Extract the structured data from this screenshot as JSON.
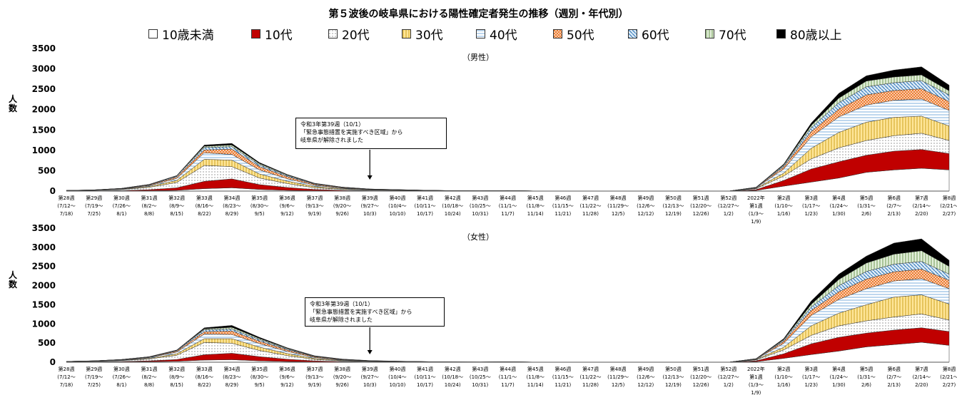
{
  "title": "第５波後の岐阜県における陽性確定者発生の推移（週別・年代別）",
  "ylabel": "人数",
  "annotation_lines": [
    "令和3年第39週（10/1）",
    "「緊急事態措置を実施すべき区域」から",
    "岐阜県が解除されました"
  ],
  "annotation_lines_female": [
    "令和3年第39週（10/1）",
    "「緊急事態措置を実施すべき区域」から",
    "岐阜県が解除されました"
  ],
  "colors": {
    "10歳未満": "#ffffff",
    "10代": "#c00000",
    "20代": "#ffffff",
    "30代": "#ffe699",
    "40代": "#bdd7ee",
    "50代": "#f8cbad",
    "60代": "#9dc3e6",
    "70代": "#c5e0b4",
    "80歳以上": "#000000"
  },
  "chart_data": [
    {
      "type": "area",
      "subtitle": "（男性）",
      "ylim": [
        0,
        3500
      ],
      "yticks": [
        0,
        500,
        1000,
        1500,
        2000,
        2500,
        3000,
        3500
      ],
      "grid": false,
      "legend": "top",
      "stacked": true,
      "categories": [
        "第28週",
        "第29週",
        "第30週",
        "第31週",
        "第32週",
        "第33週",
        "第34週",
        "第35週",
        "第36週",
        "第37週",
        "第38週",
        "第39週",
        "第40週",
        "第41週",
        "第42週",
        "第43週",
        "第44週",
        "第45週",
        "第46週",
        "第47週",
        "第48週",
        "第49週",
        "第50週",
        "第51週",
        "第52週",
        "2022年 第1週",
        "第2週",
        "第3週",
        "第4週",
        "第5週",
        "第6週",
        "第7週",
        "第8週"
      ],
      "category_dates": [
        "(7/12～ 7/18)",
        "(7/19～ 7/25)",
        "(7/26～ 8/1)",
        "(8/2～ 8/8)",
        "(8/9～ 8/15)",
        "(8/16～ 8/22)",
        "(8/23～ 8/29)",
        "(8/30～ 9/5)",
        "(9/6～ 9/12)",
        "(9/13～ 9/19)",
        "(9/20～ 9/26)",
        "(9/27～ 10/3)",
        "(10/4～ 10/10)",
        "(10/11～ 10/17)",
        "(10/18～ 10/24)",
        "(10/25～ 10/31)",
        "(11/1～ 11/7)",
        "(11/8～ 11/14)",
        "(11/15～ 11/21)",
        "(11/22～ 11/28)",
        "(11/29～ 12/5)",
        "(12/6～ 12/12)",
        "(12/13～ 12/19)",
        "(12/20～ 12/26)",
        "(12/27～ 1/2)",
        "(1/3～ 1/9)",
        "(1/10～ 1/16)",
        "(1/17～ 1/23)",
        "(1/24～ 1/30)",
        "(1/31～ 2/6)",
        "(2/7～ 2/13)",
        "(2/14～ 2/20)",
        "(2/21～ 2/27)"
      ],
      "series": [
        {
          "name": "10歳未満",
          "values": [
            1,
            2,
            4,
            8,
            20,
            60,
            80,
            40,
            20,
            8,
            4,
            2,
            2,
            1,
            0,
            0,
            1,
            0,
            0,
            0,
            0,
            0,
            0,
            0,
            0,
            15,
            120,
            220,
            320,
            460,
            520,
            560,
            520
          ]
        },
        {
          "name": "10代",
          "values": [
            2,
            4,
            10,
            25,
            60,
            180,
            220,
            120,
            70,
            30,
            15,
            7,
            4,
            2,
            1,
            1,
            1,
            0,
            0,
            0,
            0,
            0,
            0,
            0,
            0,
            20,
            140,
            320,
            400,
            420,
            460,
            460,
            400
          ]
        },
        {
          "name": "20代",
          "values": [
            6,
            10,
            25,
            60,
            130,
            390,
            300,
            160,
            95,
            45,
            25,
            14,
            10,
            6,
            3,
            2,
            3,
            1,
            0,
            0,
            0,
            0,
            0,
            0,
            0,
            25,
            110,
            250,
            340,
            360,
            380,
            400,
            320
          ]
        },
        {
          "name": "30代",
          "values": [
            2,
            4,
            8,
            20,
            50,
            150,
            160,
            100,
            60,
            30,
            15,
            8,
            6,
            4,
            2,
            1,
            2,
            1,
            0,
            0,
            0,
            0,
            0,
            0,
            0,
            10,
            70,
            260,
            380,
            450,
            450,
            420,
            360
          ]
        },
        {
          "name": "40代",
          "values": [
            2,
            4,
            8,
            20,
            50,
            160,
            140,
            100,
            60,
            30,
            15,
            8,
            6,
            4,
            2,
            1,
            2,
            1,
            0,
            0,
            0,
            0,
            0,
            0,
            0,
            10,
            100,
            280,
            380,
            420,
            420,
            420,
            380
          ]
        },
        {
          "name": "50代",
          "values": [
            1,
            2,
            5,
            15,
            35,
            70,
            130,
            80,
            50,
            25,
            12,
            6,
            4,
            2,
            1,
            1,
            2,
            1,
            0,
            0,
            0,
            0,
            0,
            0,
            0,
            6,
            50,
            130,
            190,
            250,
            240,
            250,
            220
          ]
        },
        {
          "name": "60代",
          "values": [
            1,
            2,
            4,
            10,
            20,
            60,
            60,
            45,
            25,
            12,
            6,
            3,
            2,
            1,
            1,
            1,
            1,
            0,
            0,
            0,
            0,
            0,
            0,
            0,
            0,
            4,
            30,
            90,
            160,
            200,
            190,
            200,
            160
          ]
        },
        {
          "name": "70代",
          "values": [
            0,
            1,
            2,
            4,
            10,
            30,
            40,
            30,
            18,
            8,
            4,
            2,
            1,
            1,
            0,
            0,
            1,
            0,
            0,
            0,
            0,
            0,
            0,
            0,
            0,
            2,
            20,
            60,
            110,
            140,
            140,
            140,
            100
          ]
        },
        {
          "name": "80歳以上",
          "values": [
            0,
            1,
            1,
            3,
            6,
            30,
            40,
            25,
            12,
            5,
            2,
            1,
            1,
            0,
            0,
            0,
            1,
            0,
            0,
            0,
            0,
            0,
            0,
            0,
            0,
            2,
            20,
            60,
            120,
            130,
            170,
            200,
            140
          ]
        }
      ]
    },
    {
      "type": "area",
      "subtitle": "（女性）",
      "ylim": [
        0,
        3500
      ],
      "yticks": [
        0,
        500,
        1000,
        1500,
        2000,
        2500,
        3000,
        3500
      ],
      "grid": false,
      "legend": "top",
      "stacked": true,
      "categories": [
        "第28週",
        "第29週",
        "第30週",
        "第31週",
        "第32週",
        "第33週",
        "第34週",
        "第35週",
        "第36週",
        "第37週",
        "第38週",
        "第39週",
        "第40週",
        "第41週",
        "第42週",
        "第43週",
        "第44週",
        "第45週",
        "第46週",
        "第47週",
        "第48週",
        "第49週",
        "第50週",
        "第51週",
        "第52週",
        "2022年 第1週",
        "第2週",
        "第3週",
        "第4週",
        "第5週",
        "第6週",
        "第7週",
        "第8週"
      ],
      "category_dates": [
        "(7/12～ 7/18)",
        "(7/19～ 7/25)",
        "(7/26～ 8/1)",
        "(8/2～ 8/8)",
        "(8/9～ 8/15)",
        "(8/16～ 8/22)",
        "(8/23～ 8/29)",
        "(8/30～ 9/5)",
        "(9/6～ 9/12)",
        "(9/13～ 9/19)",
        "(9/20～ 9/26)",
        "(9/27～ 10/3)",
        "(10/4～ 10/10)",
        "(10/11～ 10/17)",
        "(10/18～ 10/24)",
        "(10/25～ 10/31)",
        "(11/1～ 11/7)",
        "(11/8～ 11/14)",
        "(11/15～ 11/21)",
        "(11/22～ 11/28)",
        "(11/29～ 12/5)",
        "(12/6～ 12/12)",
        "(12/13～ 12/19)",
        "(12/20～ 12/26)",
        "(12/27～ 1/2)",
        "(1/3～ 1/9)",
        "(1/10～ 1/16)",
        "(1/17～ 1/23)",
        "(1/24～ 1/30)",
        "(1/31～ 2/6)",
        "(2/7～ 2/13)",
        "(2/14～ 2/20)",
        "(2/21～ 2/27)"
      ],
      "series": [
        {
          "name": "10歳未満",
          "values": [
            2,
            4,
            8,
            15,
            25,
            55,
            65,
            35,
            18,
            8,
            4,
            2,
            2,
            1,
            0,
            0,
            1,
            0,
            0,
            0,
            0,
            0,
            0,
            0,
            0,
            15,
            100,
            200,
            290,
            400,
            460,
            520,
            440
          ]
        },
        {
          "name": "10代",
          "values": [
            3,
            5,
            10,
            20,
            45,
            140,
            170,
            110,
            60,
            25,
            12,
            6,
            4,
            2,
            1,
            1,
            1,
            0,
            0,
            0,
            0,
            0,
            0,
            0,
            0,
            20,
            120,
            280,
            360,
            360,
            380,
            380,
            360
          ]
        },
        {
          "name": "20代",
          "values": [
            8,
            12,
            25,
            50,
            110,
            320,
            260,
            160,
            95,
            40,
            20,
            10,
            6,
            4,
            2,
            1,
            2,
            1,
            0,
            0,
            0,
            0,
            0,
            0,
            0,
            25,
            100,
            220,
            300,
            320,
            340,
            360,
            300
          ]
        },
        {
          "name": "30代",
          "values": [
            3,
            5,
            8,
            18,
            40,
            100,
            120,
            90,
            55,
            25,
            12,
            6,
            4,
            2,
            1,
            1,
            2,
            1,
            0,
            0,
            0,
            0,
            0,
            0,
            0,
            10,
            70,
            250,
            330,
            420,
            520,
            500,
            420
          ]
        },
        {
          "name": "40代",
          "values": [
            3,
            5,
            8,
            18,
            45,
            120,
            110,
            90,
            55,
            25,
            12,
            6,
            4,
            2,
            1,
            1,
            2,
            1,
            0,
            0,
            0,
            0,
            0,
            0,
            0,
            10,
            100,
            270,
            360,
            420,
            420,
            420,
            400
          ]
        },
        {
          "name": "50代",
          "values": [
            1,
            2,
            5,
            10,
            25,
            60,
            90,
            65,
            40,
            20,
            10,
            5,
            3,
            2,
            1,
            1,
            1,
            0,
            0,
            0,
            0,
            0,
            0,
            0,
            0,
            6,
            50,
            130,
            200,
            250,
            240,
            250,
            220
          ]
        },
        {
          "name": "60代",
          "values": [
            1,
            2,
            4,
            8,
            15,
            50,
            50,
            40,
            22,
            10,
            5,
            3,
            2,
            1,
            1,
            1,
            1,
            0,
            0,
            0,
            0,
            0,
            0,
            0,
            0,
            4,
            30,
            90,
            160,
            200,
            200,
            200,
            160
          ]
        },
        {
          "name": "70代",
          "values": [
            0,
            1,
            2,
            3,
            8,
            25,
            45,
            30,
            18,
            8,
            4,
            2,
            1,
            1,
            0,
            0,
            1,
            0,
            0,
            0,
            0,
            0,
            0,
            0,
            0,
            2,
            20,
            70,
            160,
            220,
            260,
            280,
            200
          ]
        },
        {
          "name": "80歳以上",
          "values": [
            0,
            1,
            1,
            2,
            5,
            30,
            50,
            30,
            15,
            6,
            3,
            2,
            1,
            0,
            0,
            0,
            1,
            0,
            0,
            0,
            0,
            0,
            0,
            0,
            0,
            2,
            25,
            90,
            140,
            180,
            290,
            310,
            160
          ]
        }
      ]
    }
  ]
}
